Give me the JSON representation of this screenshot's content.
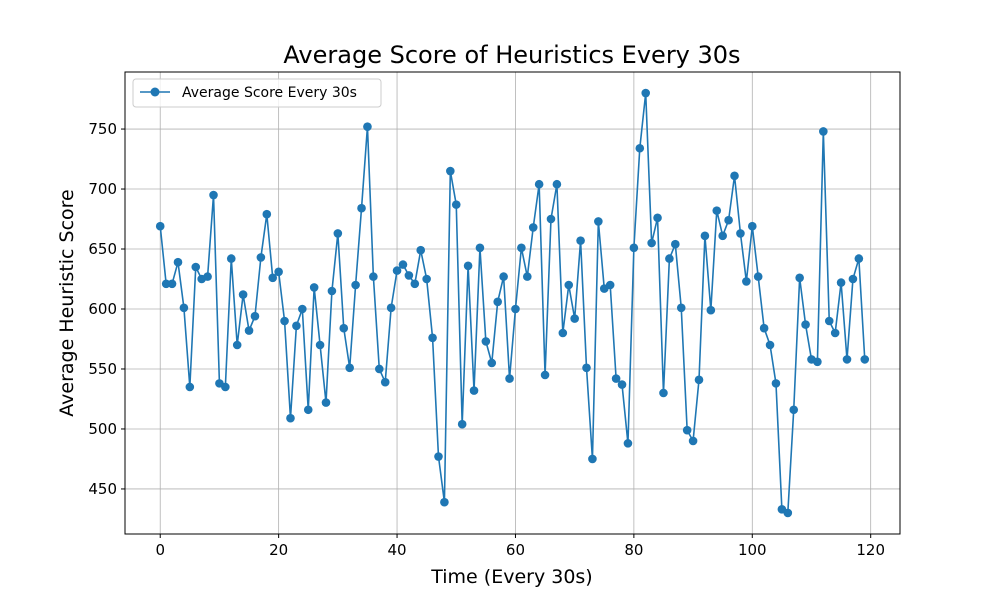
{
  "chart_data": {
    "type": "line",
    "title": "Average Score of Heuristics Every 30s",
    "xlabel": "Time (Every 30s)",
    "ylabel": "Average Heuristic Score",
    "xlim": [
      -5.95,
      124.95
    ],
    "ylim": [
      412.45,
      797.55
    ],
    "xticks": [
      0,
      20,
      40,
      60,
      80,
      100,
      120
    ],
    "yticks": [
      450,
      500,
      550,
      600,
      650,
      700,
      750
    ],
    "grid": true,
    "legend_position": "upper-left",
    "line_color": "#1f77b4",
    "series": [
      {
        "name": "Average Score Every 30s",
        "values": [
          669,
          621,
          621,
          639,
          601,
          535,
          635,
          625,
          627,
          695,
          538,
          535,
          642,
          570,
          612,
          582,
          594,
          643,
          679,
          626,
          631,
          590,
          509,
          586,
          600,
          516,
          618,
          570,
          522,
          615,
          663,
          584,
          551,
          620,
          684,
          752,
          627,
          550,
          539,
          601,
          632,
          637,
          628,
          621,
          649,
          625,
          576,
          477,
          439,
          715,
          687,
          504,
          636,
          532,
          651,
          573,
          555,
          606,
          627,
          542,
          600,
          651,
          627,
          668,
          704,
          545,
          675,
          704,
          580,
          620,
          592,
          657,
          551,
          475,
          673,
          617,
          620,
          542,
          537,
          488,
          651,
          734,
          780,
          655,
          676,
          530,
          642,
          654,
          601,
          499,
          490,
          541,
          661,
          599,
          682,
          661,
          674,
          711,
          663,
          623,
          669,
          627,
          584,
          570,
          538,
          433,
          430,
          516,
          626,
          587,
          558,
          556,
          748,
          590,
          580,
          622,
          558,
          625,
          642,
          558
        ]
      }
    ]
  }
}
